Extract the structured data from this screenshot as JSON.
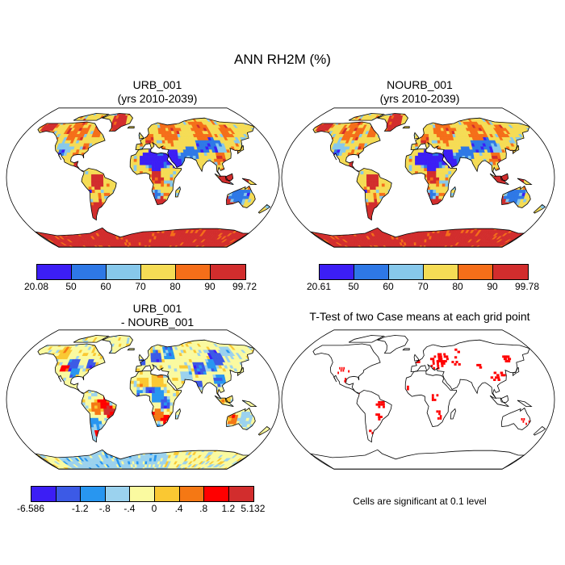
{
  "title": "ANN RH2M (%)",
  "panels": [
    {
      "id": "urb",
      "title_line1": "URB_001",
      "title_line2": "(yrs 2010-2039)",
      "type": "field",
      "colorbar": {
        "labels": [
          "20.08",
          "50",
          "60",
          "70",
          "80",
          "90",
          "99.72"
        ],
        "colors": [
          "#3c1ef5",
          "#2e78e6",
          "#87c8eb",
          "#f5dc55",
          "#f56e19",
          "#d22d2d"
        ]
      }
    },
    {
      "id": "nourb",
      "title_line1": "NOURB_001",
      "title_line2": "(yrs 2010-2039)",
      "type": "field",
      "colorbar": {
        "labels": [
          "20.61",
          "50",
          "60",
          "70",
          "80",
          "90",
          "99.78"
        ],
        "colors": [
          "#3c1ef5",
          "#2e78e6",
          "#87c8eb",
          "#f5dc55",
          "#f56e19",
          "#d22d2d"
        ]
      }
    },
    {
      "id": "diff",
      "title_line1": "URB_001",
      "title_line2": "- NOURB_001",
      "type": "difference",
      "colorbar": {
        "labels": [
          "-6.586",
          "-1.2",
          "-.8",
          "-.4",
          "0",
          ".4",
          ".8",
          "1.2",
          "5.132"
        ],
        "colors": [
          "#3c1ef5",
          "#3c5ae6",
          "#2896f0",
          "#9bd2ee",
          "#fafaa0",
          "#fac832",
          "#f57814",
          "#ff0000",
          "#d22d2d"
        ]
      }
    },
    {
      "id": "ttest",
      "title_line1": "T-Test of two Case means at each grid point",
      "title_line2": "",
      "type": "significance",
      "note": "Cells are significant at 0.1 level",
      "mark_color": "#ff0000"
    }
  ]
}
